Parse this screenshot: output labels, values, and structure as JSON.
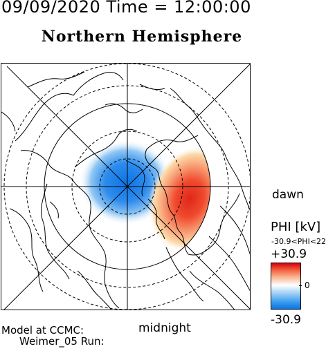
{
  "header": {
    "datetime": "09/09/2020 Time = 12:00:00"
  },
  "title": "Northern Hemisphere",
  "map": {
    "projection": "polar",
    "center": "north pole",
    "labels": {
      "right": "dawn",
      "bottom": "midnight"
    },
    "field": {
      "quantity": "PHI",
      "positive_cell": {
        "side": "dawn",
        "color": "#e0261b"
      },
      "negative_cell": {
        "side": "dusk",
        "color": "#1b86e8"
      }
    }
  },
  "legend": {
    "label": "PHI [kV]",
    "range_text": "-30.9<PHI<22",
    "max_label": "+30.9",
    "zero_label": "0",
    "min_label": "-30.9"
  },
  "credits": {
    "line1": "Model at CCMC:",
    "line2": "Weimer_05 Run:"
  },
  "colors": {
    "positive": "#d7000d",
    "negative": "#0a74e6",
    "neutral": "#ffffff"
  }
}
